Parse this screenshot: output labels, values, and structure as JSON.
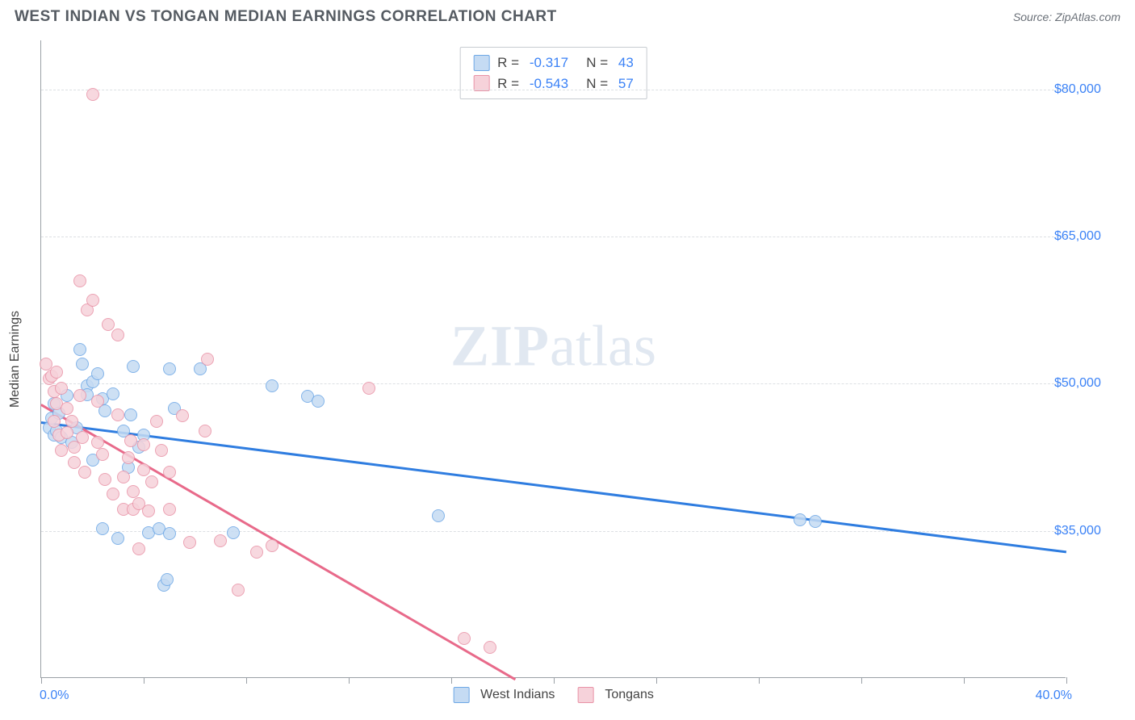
{
  "header": {
    "title": "WEST INDIAN VS TONGAN MEDIAN EARNINGS CORRELATION CHART",
    "source": "Source: ZipAtlas.com"
  },
  "watermark": {
    "zip": "ZIP",
    "atlas": "atlas"
  },
  "chart": {
    "type": "scatter",
    "ylabel": "Median Earnings",
    "xlim": [
      0,
      40
    ],
    "ylim": [
      20000,
      85000
    ],
    "x_min_label": "0.0%",
    "x_max_label": "40.0%",
    "yticks": [
      35000,
      50000,
      65000,
      80000
    ],
    "ytick_labels": [
      "$35,000",
      "$50,000",
      "$65,000",
      "$80,000"
    ],
    "xticks": [
      0,
      4,
      8,
      12,
      16,
      20,
      24,
      28,
      32,
      36,
      40
    ],
    "grid_color": "#dcdfe3",
    "axis_color": "#9aa0a6",
    "marker_radius": 8,
    "marker_border_width": 1.5,
    "series": [
      {
        "name": "West Indians",
        "fill": "#c5dbf3",
        "stroke": "#6ea8e6",
        "line_color": "#2f7de0",
        "R": "-0.317",
        "N": "43",
        "trend": {
          "x1": 0,
          "y1": 46200,
          "x2": 40,
          "y2": 33000
        },
        "points": [
          [
            0.3,
            45500
          ],
          [
            0.4,
            46500
          ],
          [
            0.5,
            44800
          ],
          [
            0.5,
            48000
          ],
          [
            0.6,
            45200
          ],
          [
            0.7,
            47000
          ],
          [
            0.8,
            44500
          ],
          [
            1.0,
            48800
          ],
          [
            1.2,
            44000
          ],
          [
            1.4,
            45500
          ],
          [
            1.5,
            53500
          ],
          [
            1.6,
            52000
          ],
          [
            1.8,
            49800
          ],
          [
            1.8,
            48900
          ],
          [
            2.0,
            50200
          ],
          [
            2.0,
            42200
          ],
          [
            2.2,
            51000
          ],
          [
            2.4,
            48500
          ],
          [
            2.4,
            35200
          ],
          [
            2.5,
            47200
          ],
          [
            2.8,
            49000
          ],
          [
            3.0,
            34200
          ],
          [
            3.2,
            45200
          ],
          [
            3.4,
            41500
          ],
          [
            3.5,
            46800
          ],
          [
            3.6,
            51800
          ],
          [
            3.8,
            43500
          ],
          [
            4.0,
            44800
          ],
          [
            4.2,
            34800
          ],
          [
            4.6,
            35200
          ],
          [
            4.8,
            29500
          ],
          [
            4.9,
            30000
          ],
          [
            5.0,
            34700
          ],
          [
            5.0,
            51500
          ],
          [
            5.2,
            47500
          ],
          [
            6.2,
            51500
          ],
          [
            7.5,
            34800
          ],
          [
            9.0,
            49800
          ],
          [
            10.4,
            48700
          ],
          [
            10.8,
            48200
          ],
          [
            15.5,
            36500
          ],
          [
            29.6,
            36100
          ],
          [
            30.2,
            36000
          ]
        ]
      },
      {
        "name": "Tongans",
        "fill": "#f6d2da",
        "stroke": "#e993a7",
        "line_color": "#e86a8a",
        "R": "-0.543",
        "N": "57",
        "trend": {
          "x1": 0,
          "y1": 48000,
          "x2": 18.5,
          "y2": 20000
        },
        "points": [
          [
            0.2,
            52000
          ],
          [
            0.3,
            50500
          ],
          [
            0.4,
            50800
          ],
          [
            0.5,
            49200
          ],
          [
            0.5,
            46200
          ],
          [
            0.6,
            48000
          ],
          [
            0.6,
            51200
          ],
          [
            0.7,
            44800
          ],
          [
            0.8,
            49500
          ],
          [
            0.8,
            43200
          ],
          [
            1.0,
            47500
          ],
          [
            1.0,
            45000
          ],
          [
            1.2,
            46200
          ],
          [
            1.3,
            43500
          ],
          [
            1.3,
            42000
          ],
          [
            1.5,
            48800
          ],
          [
            1.5,
            60500
          ],
          [
            1.6,
            44500
          ],
          [
            1.7,
            41000
          ],
          [
            1.8,
            57500
          ],
          [
            2.0,
            58500
          ],
          [
            2.0,
            79500
          ],
          [
            2.2,
            48200
          ],
          [
            2.2,
            44000
          ],
          [
            2.4,
            42800
          ],
          [
            2.5,
            40200
          ],
          [
            2.6,
            56000
          ],
          [
            2.8,
            38800
          ],
          [
            3.0,
            46800
          ],
          [
            3.0,
            55000
          ],
          [
            3.2,
            40500
          ],
          [
            3.2,
            37200
          ],
          [
            3.4,
            42500
          ],
          [
            3.5,
            44200
          ],
          [
            3.6,
            39000
          ],
          [
            3.6,
            37200
          ],
          [
            3.8,
            33200
          ],
          [
            3.8,
            37800
          ],
          [
            4.0,
            43800
          ],
          [
            4.0,
            41200
          ],
          [
            4.2,
            37000
          ],
          [
            4.3,
            40000
          ],
          [
            4.5,
            46200
          ],
          [
            4.7,
            43200
          ],
          [
            5.0,
            41000
          ],
          [
            5.0,
            37200
          ],
          [
            5.5,
            46700
          ],
          [
            5.8,
            33800
          ],
          [
            6.5,
            52500
          ],
          [
            6.4,
            45200
          ],
          [
            7.0,
            34000
          ],
          [
            7.7,
            29000
          ],
          [
            8.4,
            32800
          ],
          [
            9.0,
            33500
          ],
          [
            12.8,
            49500
          ],
          [
            16.5,
            24000
          ],
          [
            17.5,
            23100
          ]
        ]
      }
    ]
  },
  "legend_top_labels": {
    "R": "R =",
    "N": "N ="
  },
  "colors": {
    "blue_fill": "#c5dbf3",
    "blue_stroke": "#6ea8e6",
    "pink_fill": "#f6d2da",
    "pink_stroke": "#e993a7",
    "value": "#3b82f6",
    "text": "#444"
  }
}
